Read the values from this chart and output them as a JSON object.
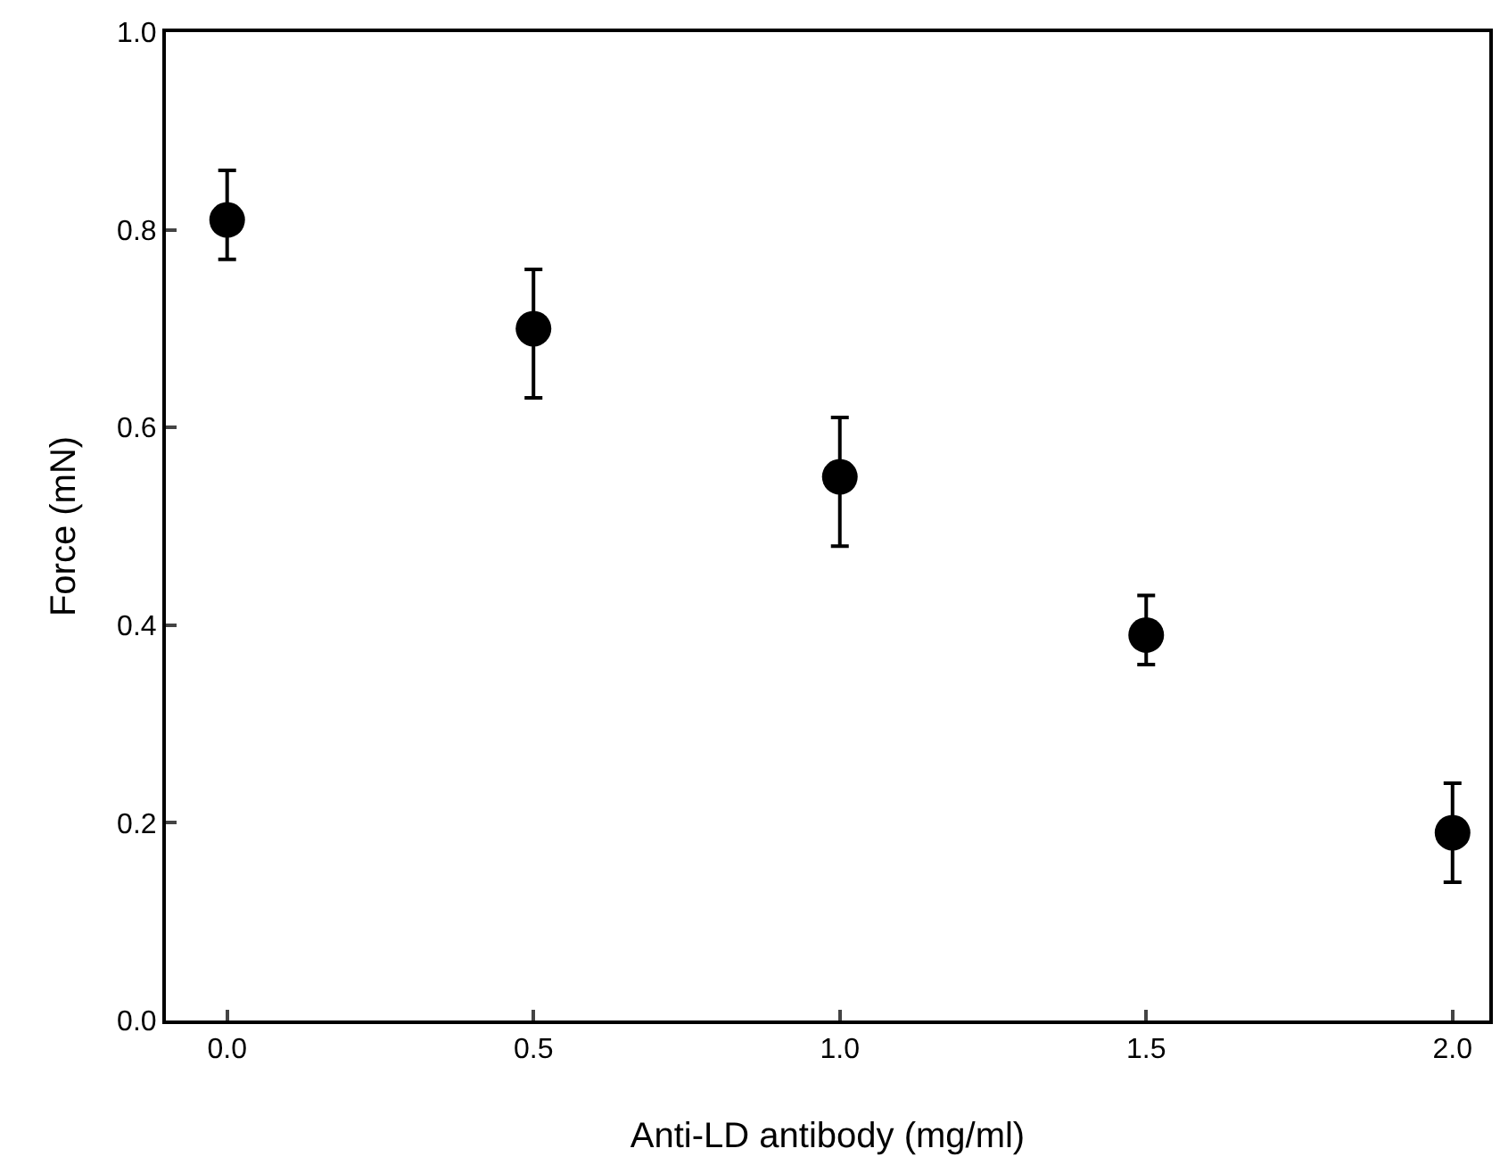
{
  "chart_data": {
    "type": "scatter",
    "xlabel": "Anti-LD antibody (mg/ml)",
    "ylabel": "Force (mN)",
    "x": [
      0,
      0.5,
      1.0,
      1.5,
      2.0
    ],
    "values": [
      0.81,
      0.7,
      0.55,
      0.39,
      0.19
    ],
    "errors": [
      [
        0.77,
        0.86
      ],
      [
        0.63,
        0.76
      ],
      [
        0.48,
        0.61
      ],
      [
        0.36,
        0.43
      ],
      [
        0.14,
        0.24
      ]
    ],
    "color": "#000000",
    "marker": "circle",
    "xlim": [
      -0.1,
      2.06
    ],
    "xticks": [
      {
        "value": 0,
        "label": "0.0"
      },
      0.5,
      {
        "value": 1,
        "label": "1.0"
      },
      1.5,
      {
        "value": 2,
        "label": "2.0"
      }
    ],
    "ylim": [
      0,
      1
    ],
    "yticks": [
      {
        "value": 0,
        "label": "0.0"
      },
      0.2,
      0.4,
      0.6,
      0.8,
      {
        "value": 1,
        "label": "1.0"
      }
    ],
    "tick_labels": "xy"
  }
}
